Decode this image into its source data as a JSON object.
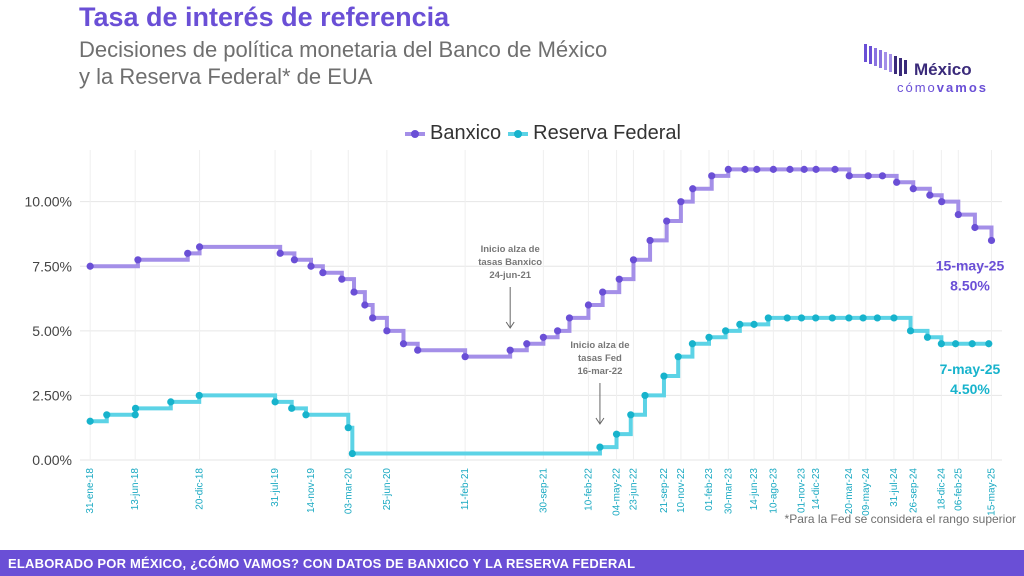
{
  "header": {
    "title": "Tasa de interés de referencia",
    "subtitle_line1": "Decisiones de política monetaria del Banco de México",
    "subtitle_line2": "y la Reserva Federal* de EUA"
  },
  "logo": {
    "word": "México",
    "sub_light": "cómo",
    "sub_bold": "vamos"
  },
  "footer": {
    "text": "ELABORADO POR MÉXICO, ¿CÓMO VAMOS? CON DATOS DE BANXICO Y LA RESERVA FEDERAL"
  },
  "note": "*Para la Fed se considera el rango superior",
  "colors": {
    "banxico": "#a48fe8",
    "banxico_marker": "#6a4fd6",
    "fed": "#5cd3e6",
    "fed_marker": "#17b3cc",
    "accent": "#6a4fd6"
  },
  "chart_data": {
    "type": "line",
    "step": true,
    "title": "Tasa de interés de referencia",
    "xlabel": "",
    "ylabel": "",
    "ylim": [
      0,
      12
    ],
    "yticks": [
      "0.00%",
      "2.50%",
      "5.00%",
      "7.50%",
      "10.00%"
    ],
    "x_tick_labels": [
      "31-ene-18",
      "13-jun-18",
      "20-dic-18",
      "31-jul-19",
      "14-nov-19",
      "03-mar-20",
      "25-jun-20",
      "11-feb-21",
      "30-sep-21",
      "10-feb-22",
      "04-may-22",
      "23-jun-22",
      "21-sep-22",
      "10-nov-22",
      "01-feb-23",
      "30-mar-23",
      "14-jun-23",
      "10-ago-23",
      "01-nov-23",
      "14-dic-23",
      "20-mar-24",
      "09-may-24",
      "31-jul-24",
      "26-sep-24",
      "18-dic-24",
      "06-feb-25",
      "15-may-25"
    ],
    "legend_position": "top-center",
    "series": [
      {
        "name": "Banxico",
        "points": [
          [
            "2018-01-31",
            7.5
          ],
          [
            "2018-06-21",
            7.75
          ],
          [
            "2018-11-15",
            8.0
          ],
          [
            "2018-12-20",
            8.25
          ],
          [
            "2019-08-15",
            8.0
          ],
          [
            "2019-09-26",
            7.75
          ],
          [
            "2019-11-14",
            7.5
          ],
          [
            "2019-12-19",
            7.25
          ],
          [
            "2020-02-13",
            7.0
          ],
          [
            "2020-03-20",
            6.5
          ],
          [
            "2020-04-21",
            6.0
          ],
          [
            "2020-05-14",
            5.5
          ],
          [
            "2020-06-25",
            5.0
          ],
          [
            "2020-08-13",
            4.5
          ],
          [
            "2020-09-24",
            4.25
          ],
          [
            "2021-02-11",
            4.0
          ],
          [
            "2021-06-24",
            4.25
          ],
          [
            "2021-08-12",
            4.5
          ],
          [
            "2021-09-30",
            4.75
          ],
          [
            "2021-11-11",
            5.0
          ],
          [
            "2021-12-16",
            5.5
          ],
          [
            "2022-02-10",
            6.0
          ],
          [
            "2022-03-24",
            6.5
          ],
          [
            "2022-05-12",
            7.0
          ],
          [
            "2022-06-23",
            7.75
          ],
          [
            "2022-08-11",
            8.5
          ],
          [
            "2022-09-29",
            9.25
          ],
          [
            "2022-11-10",
            10.0
          ],
          [
            "2022-12-15",
            10.5
          ],
          [
            "2023-02-09",
            11.0
          ],
          [
            "2023-03-30",
            11.25
          ],
          [
            "2023-05-18",
            11.25
          ],
          [
            "2023-06-22",
            11.25
          ],
          [
            "2023-08-10",
            11.25
          ],
          [
            "2023-09-28",
            11.25
          ],
          [
            "2023-11-09",
            11.25
          ],
          [
            "2023-12-14",
            11.25
          ],
          [
            "2024-02-08",
            11.25
          ],
          [
            "2024-03-21",
            11.0
          ],
          [
            "2024-05-16",
            11.0
          ],
          [
            "2024-06-27",
            11.0
          ],
          [
            "2024-08-08",
            10.75
          ],
          [
            "2024-09-26",
            10.5
          ],
          [
            "2024-11-14",
            10.25
          ],
          [
            "2024-12-19",
            10.0
          ],
          [
            "2025-02-06",
            9.5
          ],
          [
            "2025-03-27",
            9.0
          ],
          [
            "2025-05-15",
            8.5
          ]
        ],
        "end_label_date": "15-may-25",
        "end_label_value": "8.50%"
      },
      {
        "name": "Reserva Federal",
        "points": [
          [
            "2018-01-31",
            1.5
          ],
          [
            "2018-03-21",
            1.75
          ],
          [
            "2018-06-13",
            1.75
          ],
          [
            "2018-06-14",
            2.0
          ],
          [
            "2018-09-26",
            2.25
          ],
          [
            "2018-12-19",
            2.5
          ],
          [
            "2019-07-31",
            2.25
          ],
          [
            "2019-09-18",
            2.0
          ],
          [
            "2019-10-30",
            1.75
          ],
          [
            "2020-03-03",
            1.25
          ],
          [
            "2020-03-15",
            0.25
          ],
          [
            "2022-03-16",
            0.5
          ],
          [
            "2022-05-04",
            1.0
          ],
          [
            "2022-06-15",
            1.75
          ],
          [
            "2022-07-27",
            2.5
          ],
          [
            "2022-09-21",
            3.25
          ],
          [
            "2022-11-02",
            4.0
          ],
          [
            "2022-12-14",
            4.5
          ],
          [
            "2023-02-01",
            4.75
          ],
          [
            "2023-03-22",
            5.0
          ],
          [
            "2023-05-03",
            5.25
          ],
          [
            "2023-06-14",
            5.25
          ],
          [
            "2023-07-26",
            5.5
          ],
          [
            "2023-09-20",
            5.5
          ],
          [
            "2023-11-01",
            5.5
          ],
          [
            "2023-12-13",
            5.5
          ],
          [
            "2024-01-31",
            5.5
          ],
          [
            "2024-03-20",
            5.5
          ],
          [
            "2024-05-01",
            5.5
          ],
          [
            "2024-06-12",
            5.5
          ],
          [
            "2024-07-31",
            5.5
          ],
          [
            "2024-09-18",
            5.0
          ],
          [
            "2024-11-07",
            4.75
          ],
          [
            "2024-12-18",
            4.5
          ],
          [
            "2025-01-29",
            4.5
          ],
          [
            "2025-03-19",
            4.5
          ],
          [
            "2025-05-07",
            4.5
          ]
        ],
        "end_label_date": "7-may-25",
        "end_label_value": "4.50%"
      }
    ],
    "annotations": [
      {
        "lines": [
          "Inicio alza de",
          "tasas Banxico",
          "24-jun-21"
        ],
        "date": "2021-06-24"
      },
      {
        "lines": [
          "Inicio alza de",
          "tasas Fed",
          "16-mar-22"
        ],
        "date": "2022-03-16"
      }
    ]
  }
}
